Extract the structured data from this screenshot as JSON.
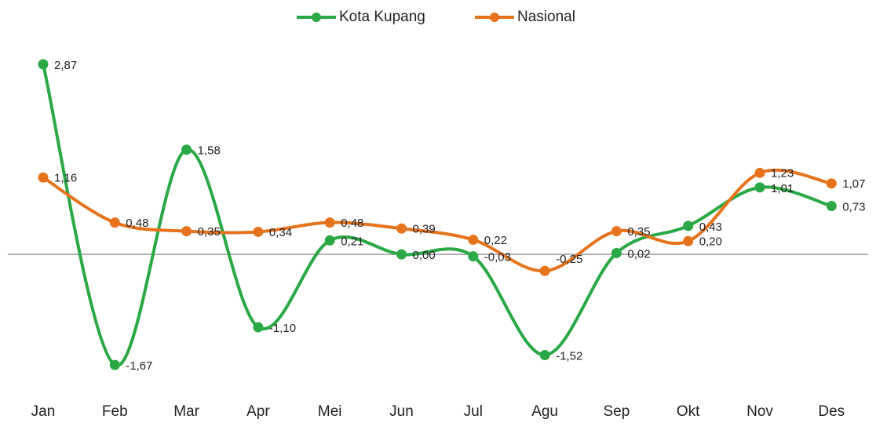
{
  "chart_data": {
    "type": "line",
    "categories": [
      "Jan",
      "Feb",
      "Mar",
      "Apr",
      "Mei",
      "Jun",
      "Jul",
      "Agu",
      "Sep",
      "Okt",
      "Nov",
      "Des"
    ],
    "series": [
      {
        "name": "Kota Kupang",
        "color": "#2aa845",
        "values": [
          2.87,
          -1.67,
          1.58,
          -1.1,
          0.21,
          0.0,
          -0.03,
          -1.52,
          0.02,
          0.43,
          1.01,
          0.73
        ],
        "value_labels": [
          "2,87",
          "-1,67",
          "1,58",
          "-1,10",
          "0,21",
          "0,00",
          "-0,03",
          "-1,52",
          "0,02",
          "0,43",
          "1,01",
          "0,73"
        ]
      },
      {
        "name": "Nasional",
        "color": "#e6721c",
        "values": [
          1.16,
          0.48,
          0.35,
          0.34,
          0.48,
          0.39,
          0.22,
          -0.25,
          0.35,
          0.2,
          1.23,
          1.07
        ],
        "value_labels": [
          "1,16",
          "0,48",
          "0,35",
          "0,34",
          "0,48",
          "0,39",
          "0,22",
          "-0,25",
          "0,35",
          "0,20",
          "1,23",
          "1,07"
        ]
      }
    ],
    "ylim": [
      -2,
      3.2
    ],
    "smooth": true,
    "legend": "top"
  }
}
